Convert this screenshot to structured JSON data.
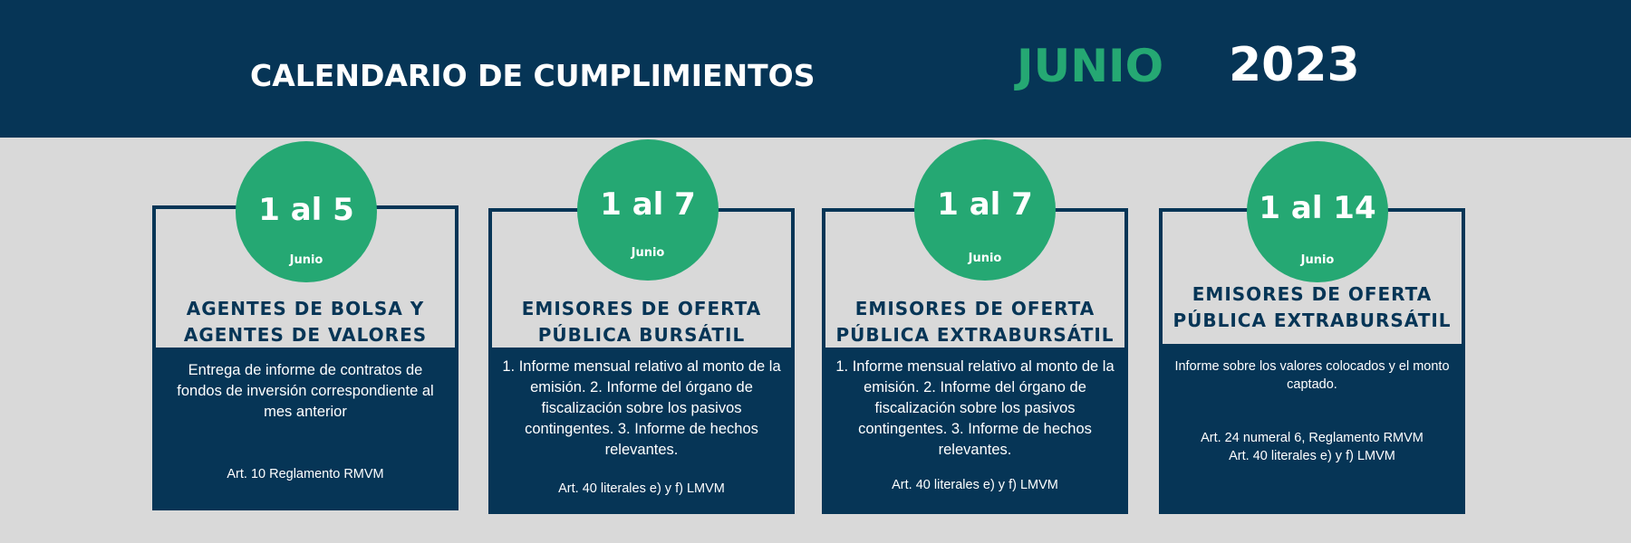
{
  "header": {
    "title": "CALENDARIO DE CUMPLIMIENTOS",
    "month": "JUNIO",
    "year": "2023"
  },
  "colors": {
    "navy": "#063556",
    "green": "#25a873",
    "background": "#d9d9d9",
    "white": "#ffffff"
  },
  "cards": [
    {
      "range": "1 al 5",
      "month": "Junio",
      "heading_line1": "AGENTES DE BOLSA Y",
      "heading_line2": "AGENTES DE VALORES",
      "description": "Entrega de informe de contratos de fondos de inversión correspondiente al mes anterior",
      "reference": "Art. 10 Reglamento RMVM"
    },
    {
      "range": "1 al 7",
      "month": "Junio",
      "heading_line1": "EMISORES DE OFERTA",
      "heading_line2": "PÚBLICA BURSÁTIL",
      "description": "1. Informe mensual relativo al monto de la emisión. 2. Informe del órgano de fiscalización sobre los pasivos contingentes. 3. Informe de hechos relevantes.",
      "reference": "Art. 40 literales e) y f) LMVM"
    },
    {
      "range": "1 al 7",
      "month": "Junio",
      "heading_line1": "EMISORES DE OFERTA",
      "heading_line2": "PÚBLICA EXTRABURSÁTIL",
      "description": "1. Informe mensual relativo al monto de la emisión. 2. Informe del órgano de fiscalización sobre los pasivos contingentes. 3. Informe de hechos relevantes.",
      "reference": "Art. 40 literales e) y f) LMVM"
    },
    {
      "range": "1 al 14",
      "month": "Junio",
      "heading_line1": "EMISORES DE OFERTA",
      "heading_line2": "PÚBLICA EXTRABURSÁTIL",
      "description": "Informe sobre los valores colocados y el monto captado.",
      "reference_line1": "Art. 24 numeral 6, Reglamento RMVM",
      "reference_line2": "Art. 40 literales e) y f) LMVM"
    }
  ]
}
